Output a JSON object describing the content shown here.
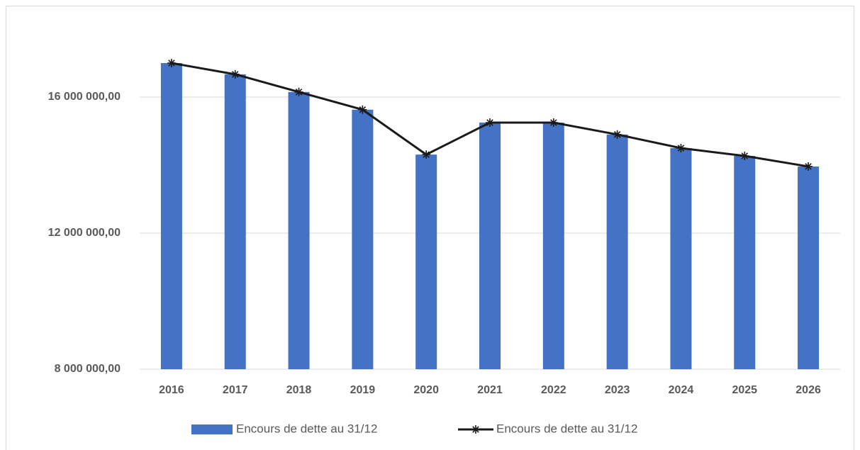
{
  "chart_data": {
    "type": "bar-line",
    "categories": [
      "2016",
      "2017",
      "2018",
      "2019",
      "2020",
      "2021",
      "2022",
      "2023",
      "2024",
      "2025",
      "2026"
    ],
    "series": [
      {
        "name": "Encours de dette au 31/12",
        "type": "bar",
        "color": "#4472c4",
        "values": [
          17000000,
          16670000,
          16150000,
          15630000,
          14310000,
          15250000,
          15250000,
          14900000,
          14500000,
          14270000,
          13960000
        ]
      },
      {
        "name": "Encours de dette au 31/12",
        "type": "line",
        "color": "#1a1a1a",
        "marker": "star",
        "values": [
          17000000,
          16670000,
          16150000,
          15630000,
          14310000,
          15250000,
          15250000,
          14900000,
          14500000,
          14270000,
          13960000
        ]
      }
    ],
    "ylim": [
      8000000,
      18000000
    ],
    "yticks": [
      {
        "value": 8000000,
        "label": "8 000 000,00"
      },
      {
        "value": 12000000,
        "label": "12 000 000,00"
      },
      {
        "value": 16000000,
        "label": "16 000 000,00"
      }
    ],
    "grid": true,
    "legend": "bottom"
  }
}
